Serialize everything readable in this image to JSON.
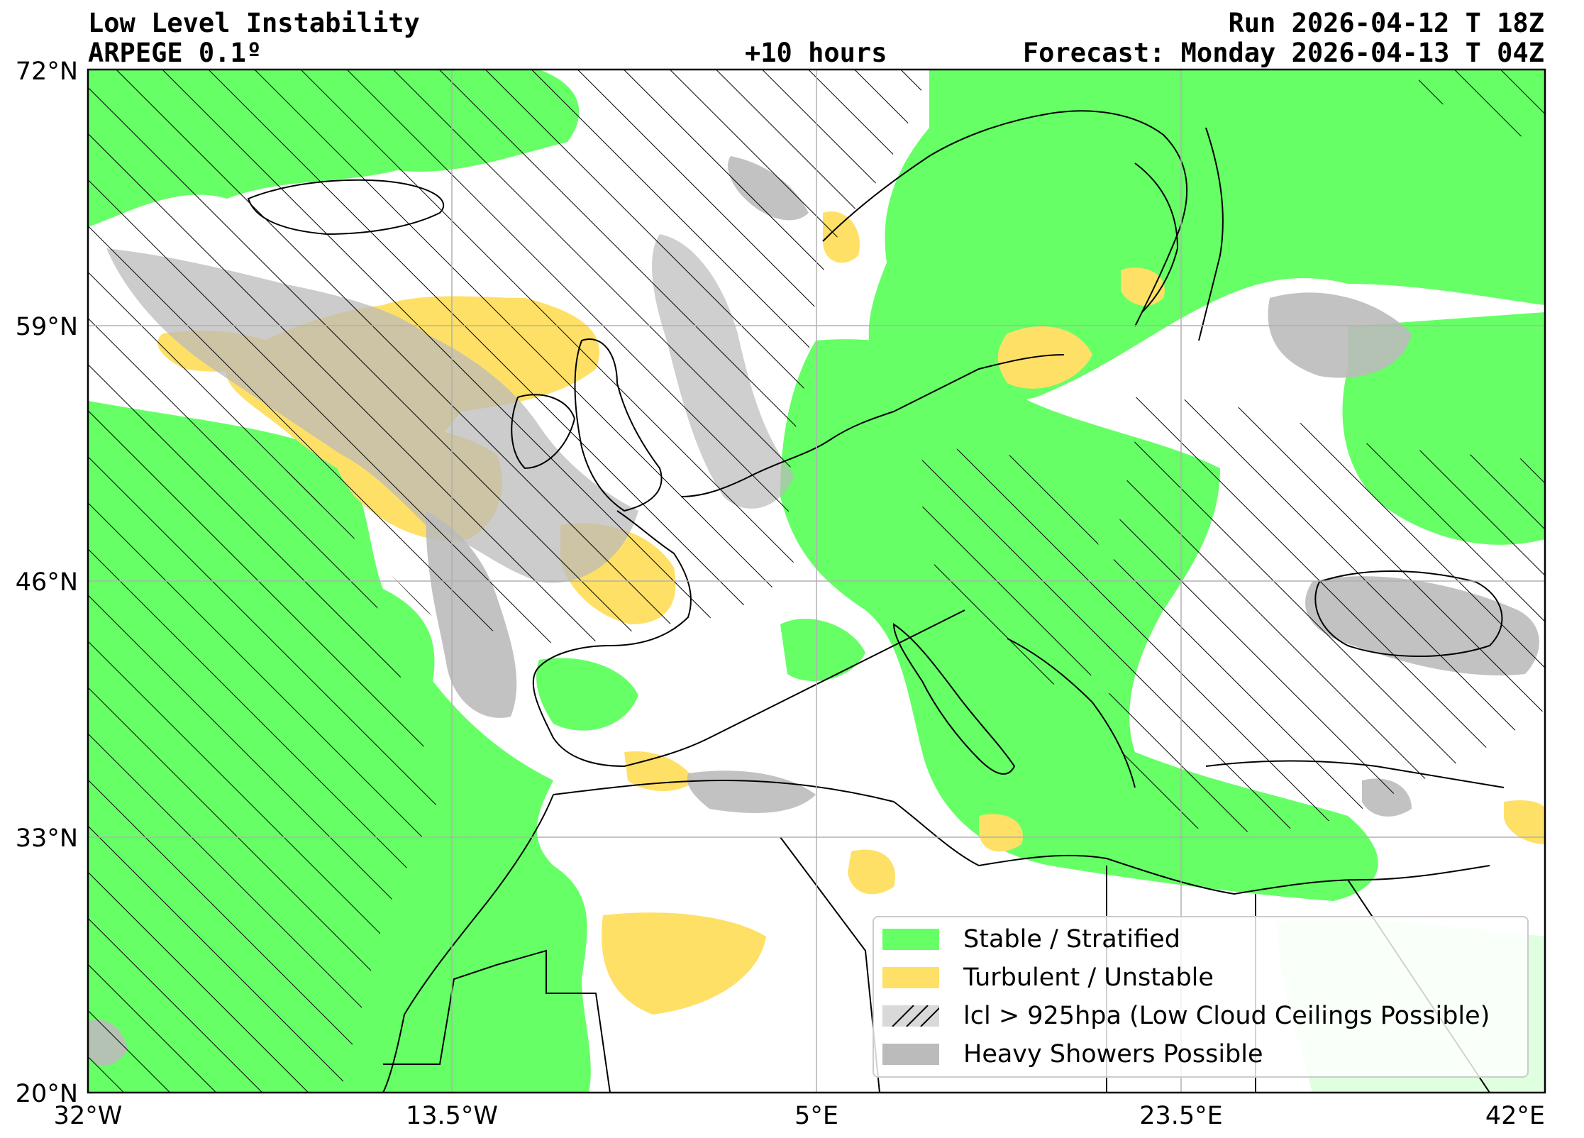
{
  "header": {
    "title": "Low Level Instability",
    "model": "ARPEGE 0.1º",
    "lead_time": "+10 hours",
    "run": "Run 2026-04-12 T 18Z",
    "forecast": "Forecast: Monday 2026-04-13 T 04Z"
  },
  "axes": {
    "lon_labels": [
      "32°W",
      "13.5°W",
      "5°E",
      "23.5°E",
      "42°E"
    ],
    "lat_labels": [
      "72°N",
      "59°N",
      "46°N",
      "33°N",
      "20°N"
    ],
    "lon_range": [
      -32,
      42
    ],
    "lat_range": [
      20,
      72
    ],
    "gridlines": true
  },
  "legend": {
    "position": "bottom-right",
    "items": [
      {
        "label": "Stable / Stratified",
        "color": "#66ff66",
        "style": "fill"
      },
      {
        "label": "Turbulent / Unstable",
        "color": "#ffe066",
        "style": "fill"
      },
      {
        "label": "lcl > 925hpa (Low Cloud Ceilings Possible)",
        "color": "#d9d9d9",
        "style": "hatch"
      },
      {
        "label": "Heavy Showers Possible",
        "color": "#bbbbbb",
        "style": "fill"
      }
    ]
  },
  "colors": {
    "stable": "#66ff66",
    "unstable": "#ffe066",
    "showers": "#bbbbbb",
    "grid": "#b0b0b0",
    "coast": "#000000"
  }
}
